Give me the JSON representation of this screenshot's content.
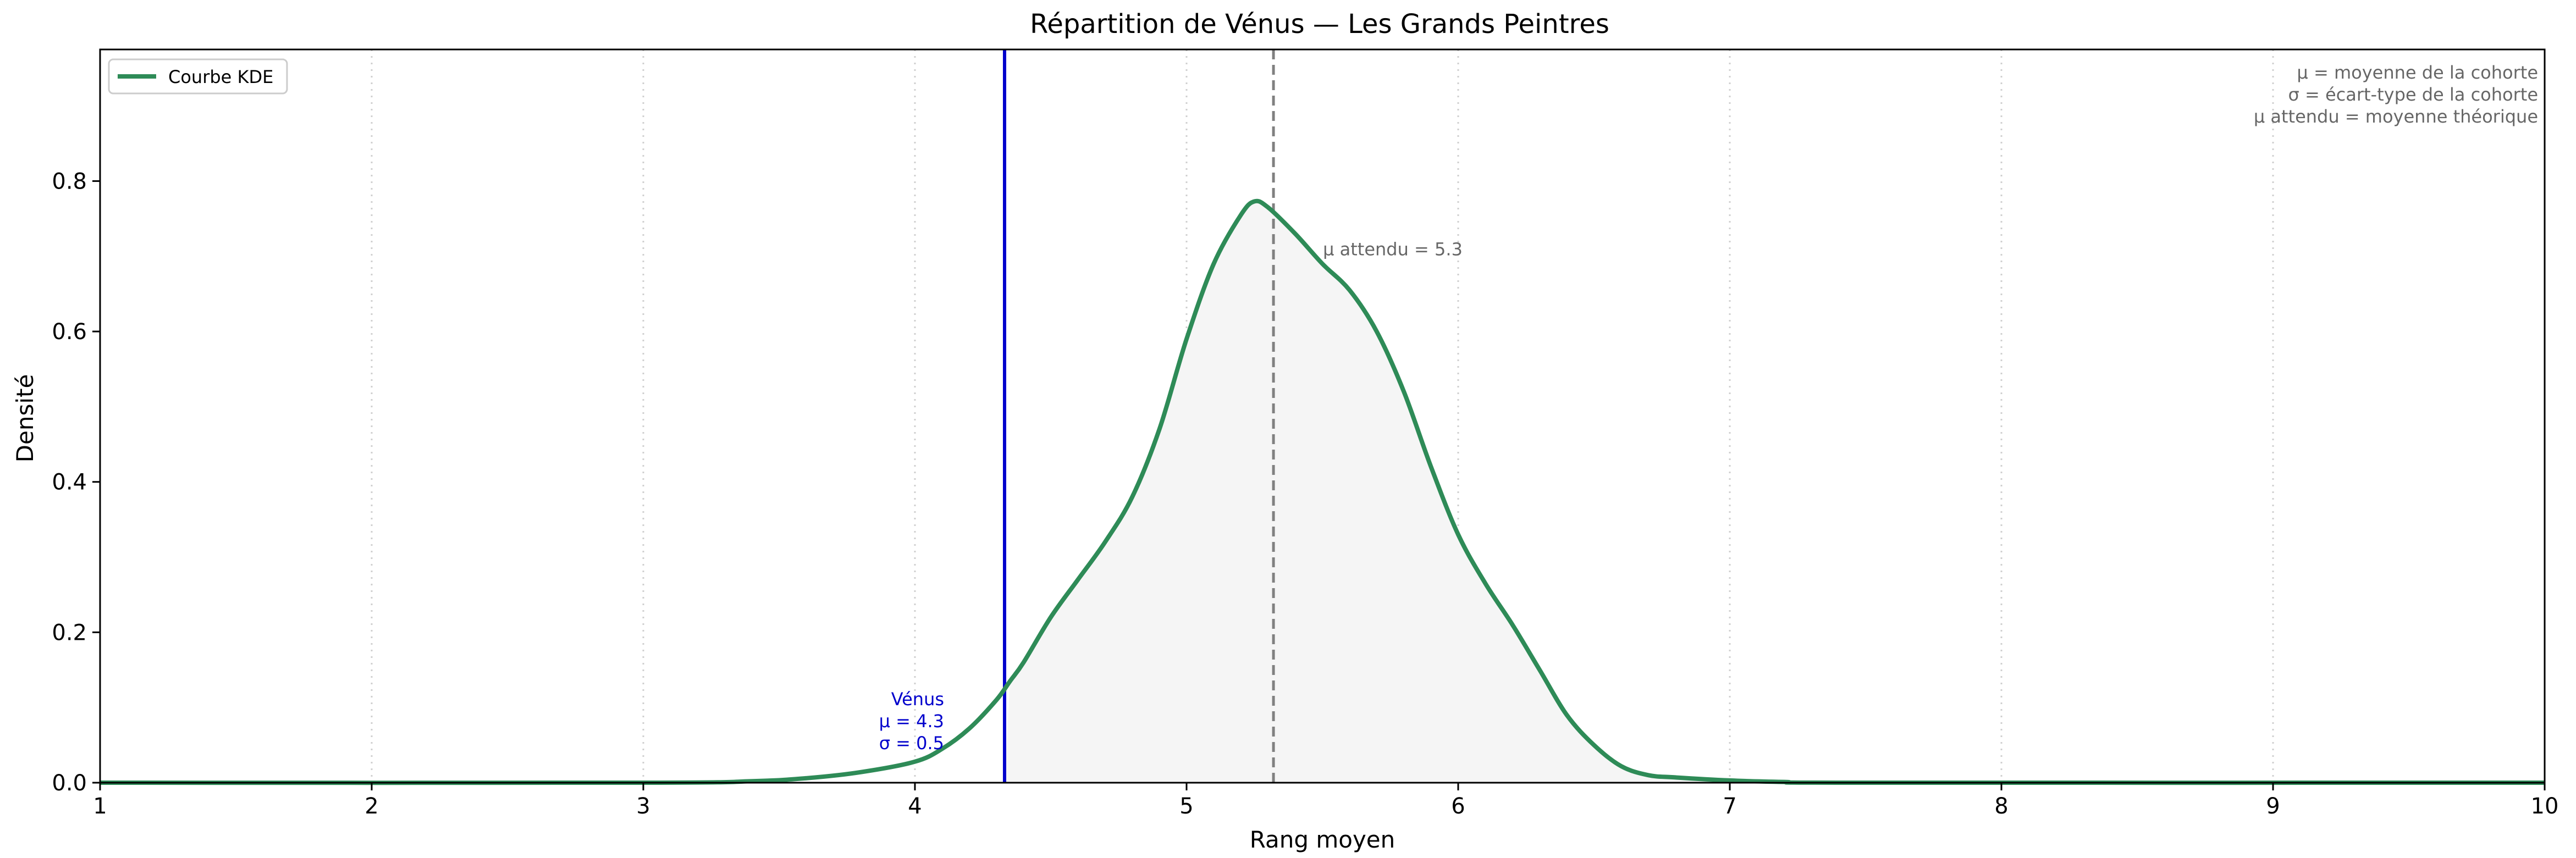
{
  "chart_data": {
    "type": "line",
    "title": "Répartition de Vénus — Les Grands Peintres",
    "xlabel": "Rang moyen",
    "ylabel": "Densité",
    "xlim": [
      1,
      10
    ],
    "ylim": [
      0,
      0.975
    ],
    "xticks": [
      1,
      2,
      3,
      4,
      5,
      6,
      7,
      8,
      9,
      10
    ],
    "yticks": [
      0.0,
      0.2,
      0.4,
      0.6,
      0.8
    ],
    "xtick_labels": [
      "1",
      "2",
      "3",
      "4",
      "5",
      "6",
      "7",
      "8",
      "9",
      "10"
    ],
    "ytick_labels": [
      "0.0",
      "0.2",
      "0.4",
      "0.6",
      "0.8"
    ],
    "grid": "vertical-dotted",
    "legend": {
      "position": "top-left",
      "entries": [
        "Courbe KDE"
      ]
    },
    "series": [
      {
        "name": "Courbe KDE",
        "color": "#2e8b57",
        "x": [
          1,
          3.0,
          3.4,
          3.6,
          3.8,
          4.0,
          4.1,
          4.2,
          4.3,
          4.35,
          4.4,
          4.5,
          4.6,
          4.7,
          4.8,
          4.9,
          5.0,
          5.1,
          5.2,
          5.25,
          5.3,
          5.4,
          5.5,
          5.6,
          5.7,
          5.8,
          5.9,
          6.0,
          6.1,
          6.2,
          6.3,
          6.4,
          6.5,
          6.6,
          6.7,
          6.8,
          7.0,
          7.2,
          7.5,
          10
        ],
        "y": [
          0.0,
          0.0,
          0.002,
          0.006,
          0.014,
          0.028,
          0.045,
          0.072,
          0.11,
          0.135,
          0.16,
          0.22,
          0.27,
          0.32,
          0.38,
          0.47,
          0.59,
          0.69,
          0.755,
          0.773,
          0.765,
          0.73,
          0.69,
          0.655,
          0.6,
          0.52,
          0.42,
          0.33,
          0.265,
          0.21,
          0.15,
          0.09,
          0.05,
          0.022,
          0.01,
          0.007,
          0.003,
          0.001,
          0.0,
          0.0
        ]
      }
    ],
    "fill_under_from_x": 4.33,
    "fill_color": "#f5f5f5",
    "reference_lines": [
      {
        "name": "venus",
        "x": 4.33,
        "color": "#0000cc",
        "style": "solid"
      },
      {
        "name": "expected",
        "x": 5.32,
        "color": "#808080",
        "style": "dashed"
      }
    ],
    "annotations": {
      "venus_lines": [
        "Vénus",
        "μ = 4.3",
        "σ = 0.5"
      ],
      "venus_color": "#0000cc",
      "expected_label": "μ attendu = 5.3",
      "legend_note_lines": [
        "μ = moyenne de la cohorte",
        "σ = écart-type de la cohorte",
        "μ attendu = moyenne théorique"
      ],
      "note_color": "#666666"
    }
  }
}
